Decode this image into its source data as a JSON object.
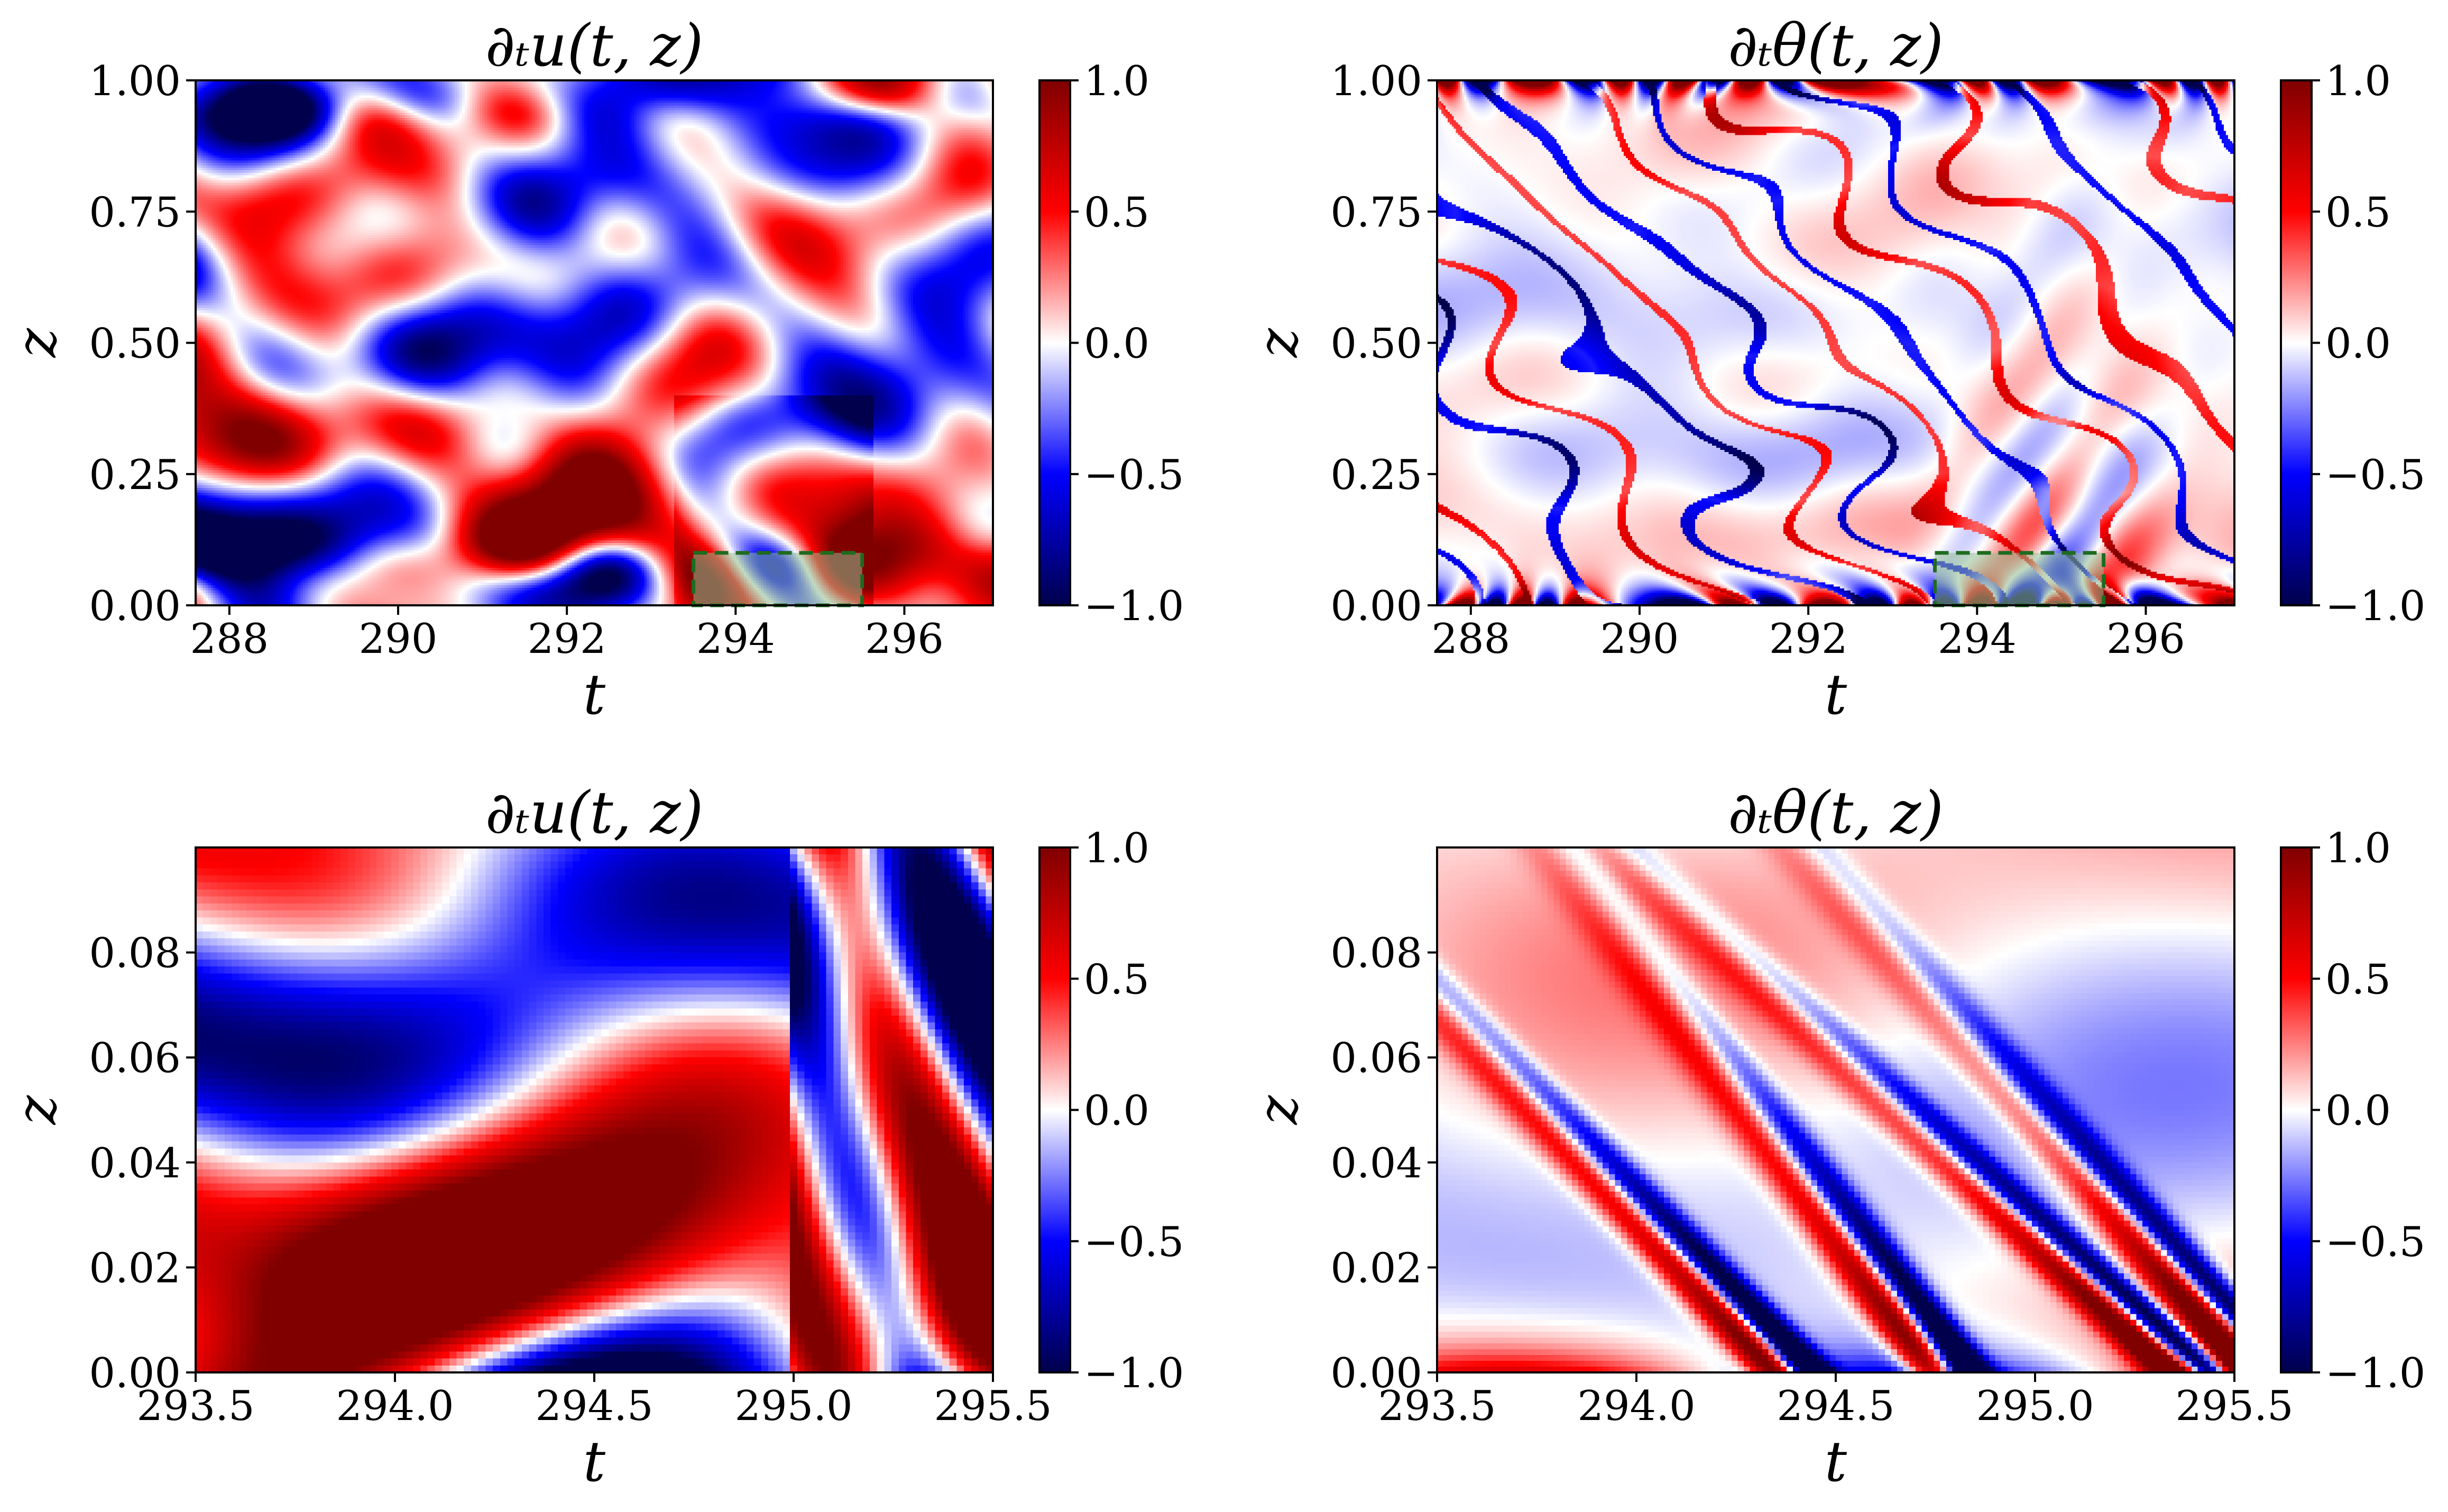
{
  "colormap": {
    "name": "seismic",
    "low": "#00004c",
    "mid": "#ffffff",
    "high": "#800000"
  },
  "highlight_box": {
    "fill": "#8fbf8f",
    "stroke": "#1f6b1f"
  },
  "chart_data": [
    {
      "id": "top-left",
      "type": "heatmap",
      "title": "∂ₜu(t, z)",
      "xlabel": "t",
      "ylabel": "z",
      "xlim": [
        287.6,
        297.05
      ],
      "ylim": [
        0.0,
        1.0
      ],
      "xticks": [
        288,
        290,
        292,
        294,
        296
      ],
      "xtick_labels": [
        "288",
        "290",
        "292",
        "294",
        "296"
      ],
      "yticks": [
        0.0,
        0.25,
        0.5,
        0.75,
        1.0
      ],
      "ytick_labels": [
        "0.00",
        "0.25",
        "0.50",
        "0.75",
        "1.00"
      ],
      "colorbar": {
        "range": [
          -1.0,
          1.0
        ],
        "ticks": [
          1.0,
          0.5,
          0.0,
          -0.5,
          -1.0
        ],
        "tick_labels": [
          "1.0",
          "0.5",
          "0.0",
          "−0.5",
          "−1.0"
        ]
      },
      "highlight_region": {
        "t": [
          293.5,
          295.5
        ],
        "z": [
          0.0,
          0.1
        ]
      },
      "pattern": "u_full"
    },
    {
      "id": "top-right",
      "type": "heatmap",
      "title": "∂ₜθ(t, z)",
      "xlabel": "t",
      "ylabel": "z",
      "xlim": [
        287.6,
        297.05
      ],
      "ylim": [
        0.0,
        1.0
      ],
      "xticks": [
        288,
        290,
        292,
        294,
        296
      ],
      "xtick_labels": [
        "288",
        "290",
        "292",
        "294",
        "296"
      ],
      "yticks": [
        0.0,
        0.25,
        0.5,
        0.75,
        1.0
      ],
      "ytick_labels": [
        "0.00",
        "0.25",
        "0.50",
        "0.75",
        "1.00"
      ],
      "colorbar": {
        "range": [
          -1.0,
          1.0
        ],
        "ticks": [
          1.0,
          0.5,
          0.0,
          -0.5,
          -1.0
        ],
        "tick_labels": [
          "1.0",
          "0.5",
          "0.0",
          "−0.5",
          "−1.0"
        ]
      },
      "highlight_region": {
        "t": [
          293.5,
          295.5
        ],
        "z": [
          0.0,
          0.1
        ]
      },
      "pattern": "theta_full"
    },
    {
      "id": "bottom-left",
      "type": "heatmap",
      "title": "∂ₜu(t, z)",
      "xlabel": "t",
      "ylabel": "z",
      "xlim": [
        293.5,
        295.5
      ],
      "ylim": [
        0.0,
        0.1
      ],
      "xticks": [
        293.5,
        294.0,
        294.5,
        295.0,
        295.5
      ],
      "xtick_labels": [
        "293.5",
        "294.0",
        "294.5",
        "295.0",
        "295.5"
      ],
      "yticks": [
        0.0,
        0.02,
        0.04,
        0.06,
        0.08
      ],
      "ytick_labels": [
        "0.00",
        "0.02",
        "0.04",
        "0.06",
        "0.08"
      ],
      "colorbar": {
        "range": [
          -1.0,
          1.0
        ],
        "ticks": [
          1.0,
          0.5,
          0.0,
          -0.5,
          -1.0
        ],
        "tick_labels": [
          "1.0",
          "0.5",
          "0.0",
          "−0.5",
          "−1.0"
        ]
      },
      "pattern": "u_zoom"
    },
    {
      "id": "bottom-right",
      "type": "heatmap",
      "title": "∂ₜθ(t, z)",
      "xlabel": "t",
      "ylabel": "z",
      "xlim": [
        293.5,
        295.5
      ],
      "ylim": [
        0.0,
        0.1
      ],
      "xticks": [
        293.5,
        294.0,
        294.5,
        295.0,
        295.5
      ],
      "xtick_labels": [
        "293.5",
        "294.0",
        "294.5",
        "295.0",
        "295.5"
      ],
      "yticks": [
        0.0,
        0.02,
        0.04,
        0.06,
        0.08
      ],
      "ytick_labels": [
        "0.00",
        "0.02",
        "0.04",
        "0.06",
        "0.08"
      ],
      "colorbar": {
        "range": [
          -1.0,
          1.0
        ],
        "ticks": [
          1.0,
          0.5,
          0.0,
          -0.5,
          -1.0
        ],
        "tick_labels": [
          "1.0",
          "0.5",
          "0.0",
          "−0.5",
          "−1.0"
        ]
      },
      "pattern": "theta_zoom"
    }
  ]
}
